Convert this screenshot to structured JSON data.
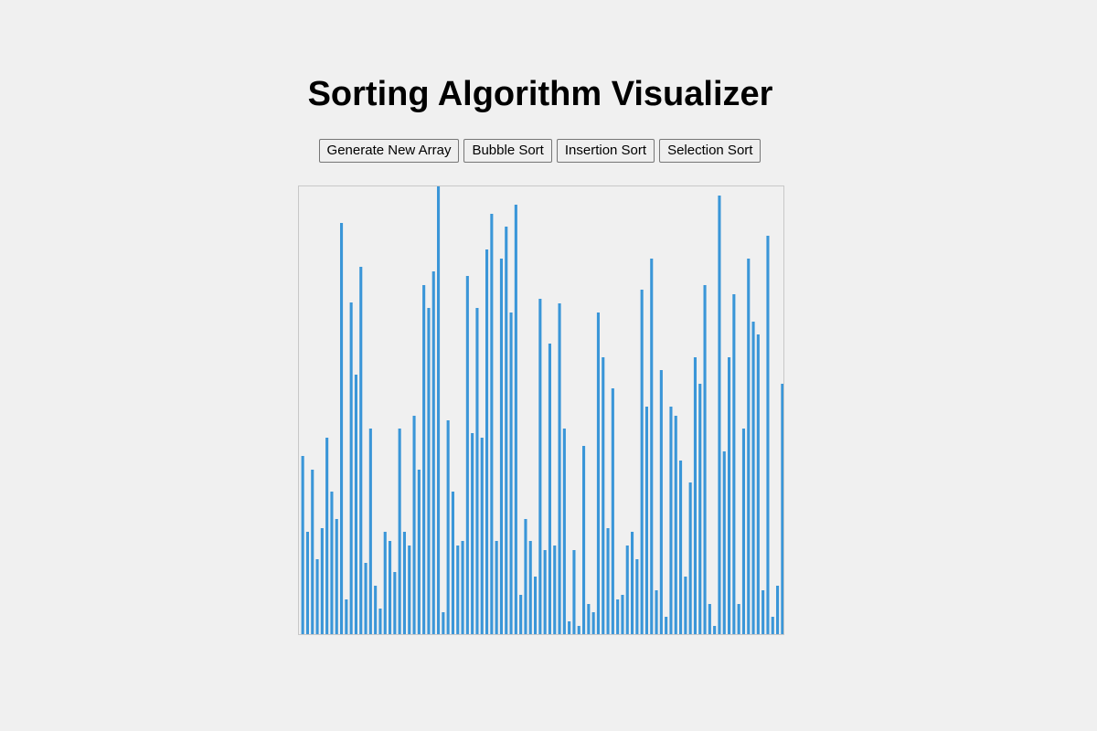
{
  "page": {
    "title": "Sorting Algorithm Visualizer"
  },
  "controls": {
    "generate_label": "Generate New Array",
    "bubble_label": "Bubble Sort",
    "insertion_label": "Insertion Sort",
    "selection_label": "Selection Sort"
  },
  "colors": {
    "bar": "#3a96d8",
    "background": "#f0f0f0",
    "border": "#c8c8c8"
  },
  "chart_data": {
    "type": "bar",
    "title": "",
    "xlabel": "",
    "ylabel": "",
    "ylim": [
      0,
      490
    ],
    "values": [
      195,
      112,
      180,
      82,
      116,
      215,
      156,
      126,
      450,
      38,
      363,
      284,
      402,
      78,
      225,
      53,
      28,
      112,
      102,
      68,
      225,
      112,
      97,
      239,
      180,
      382,
      357,
      397,
      490,
      24,
      234,
      156,
      97,
      102,
      392,
      220,
      357,
      215,
      421,
      460,
      102,
      411,
      446,
      352,
      470,
      43,
      126,
      102,
      63,
      367,
      92,
      318,
      97,
      362,
      225,
      14,
      92,
      9,
      206,
      33,
      24,
      352,
      303,
      116,
      269,
      38,
      43,
      97,
      112,
      82,
      377,
      249,
      411,
      48,
      289,
      19,
      249,
      239,
      190,
      63,
      166,
      303,
      274,
      382,
      33,
      9,
      480,
      200,
      303,
      372,
      33,
      225,
      411,
      342,
      328,
      48,
      436,
      19,
      53,
      274
    ]
  }
}
